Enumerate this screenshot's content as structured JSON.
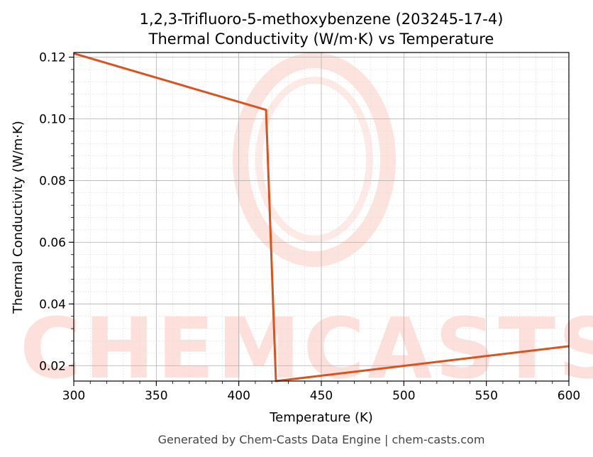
{
  "chart_data": {
    "type": "line",
    "title_line1": "1,2,3-Trifluoro-5-methoxybenzene (203245-17-4)",
    "title_line2": "Thermal Conductivity (W/m·K) vs Temperature",
    "xlabel": "Temperature (K)",
    "ylabel": "Thermal Conductivity (W/m·K)",
    "xlim": [
      300,
      600
    ],
    "ylim": [
      0.015,
      0.1215
    ],
    "xticks": [
      300,
      350,
      400,
      450,
      500,
      550,
      600
    ],
    "yticks": [
      0.02,
      0.04,
      0.06,
      0.08,
      0.1,
      0.12
    ],
    "ytick_labels": [
      "0.02",
      "0.04",
      "0.06",
      "0.08",
      "0.10",
      "0.12"
    ],
    "grid": true,
    "series": [
      {
        "color": "#d9531e",
        "x": [
          300,
          416.5,
          422.5,
          600
        ],
        "y": [
          0.1212,
          0.1029,
          0.015,
          0.0263
        ]
      }
    ],
    "watermark": "CHEMCASTS",
    "footer": "Generated by Chem-Casts Data Engine | chem-casts.com"
  }
}
